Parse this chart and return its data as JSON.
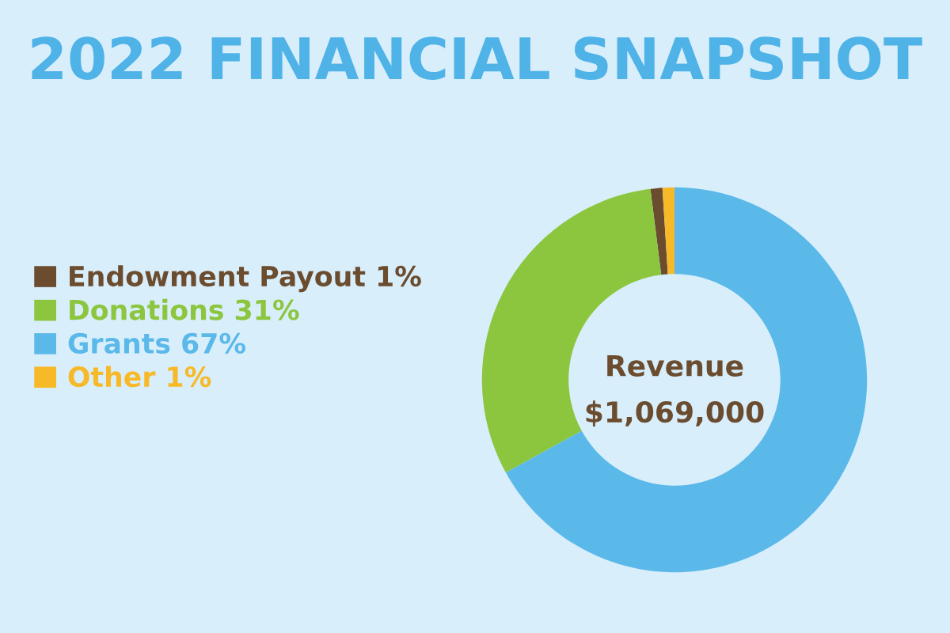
{
  "chart_data": {
    "type": "donut",
    "title": "2022 FINANCIAL SNAPSHOT",
    "categories": [
      "Endowment Payout",
      "Donations",
      "Grants",
      "Other"
    ],
    "values": [
      1,
      31,
      67,
      1
    ],
    "value_labels": [
      "1%",
      "31%",
      "67%",
      "1%"
    ],
    "colors": [
      "#6b4c2e",
      "#8cc63f",
      "#5bb9ea",
      "#f7b928"
    ],
    "annotations": [
      "Revenue",
      "$1,069,000"
    ],
    "legend": "left"
  }
}
